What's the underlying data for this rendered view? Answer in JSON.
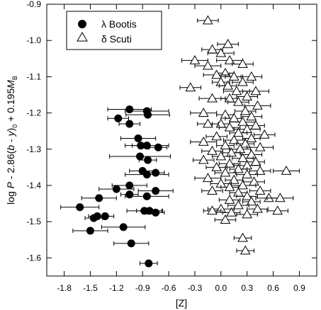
{
  "chart_data": {
    "type": "scatter",
    "title": "",
    "xlabel": "[Z]",
    "ylabel_parts": {
      "pre": "log ",
      "P": "P",
      "mid1": " - 2.86(",
      "b": "b",
      "dash": " - ",
      "y": "y",
      "close": ")",
      "sub0": "0",
      "mid2": " + 0.195",
      "M": "M",
      "subB": "B"
    },
    "xlim": [
      -2.0,
      1.1
    ],
    "ylim": [
      -1.65,
      -0.9
    ],
    "y_inverted": true,
    "x_ticks": [
      -1.8,
      -1.5,
      -1.2,
      -0.9,
      -0.6,
      -0.3,
      0.0,
      0.3,
      0.6,
      0.9
    ],
    "x_tick_labels": [
      "-1.8",
      "-1.5",
      "-1.2",
      "-0.9",
      "-0.6",
      "-0.3",
      "0.0",
      "0.3",
      "0.6",
      "0.9"
    ],
    "y_ticks": [
      -0.9,
      -1.0,
      -1.1,
      -1.2,
      -1.3,
      -1.4,
      -1.5,
      -1.6
    ],
    "y_tick_labels": [
      "-0.9",
      "-1.0",
      "-1.1",
      "-1.2",
      "-1.3",
      "-1.4",
      "-1.5",
      "-1.6"
    ],
    "grid": false,
    "legend_position": "top-left",
    "series": [
      {
        "name": "λ Bootis",
        "marker": "filled-circle",
        "color": "#000000",
        "points": [
          [
            -1.05,
            -1.19,
            0.25
          ],
          [
            -0.85,
            -1.195,
            0.25
          ],
          [
            -1.18,
            -1.215,
            0.12
          ],
          [
            -0.84,
            -1.205,
            0.25
          ],
          [
            -1.05,
            -1.23,
            0.12
          ],
          [
            -0.95,
            -1.27,
            0.2
          ],
          [
            -0.92,
            -1.29,
            0.1
          ],
          [
            -0.85,
            -1.29,
            0.25
          ],
          [
            -0.72,
            -1.295,
            0.1
          ],
          [
            -0.93,
            -1.32,
            0.35
          ],
          [
            -0.84,
            -1.33,
            0.1
          ],
          [
            -0.9,
            -1.36,
            0.15
          ],
          [
            -0.85,
            -1.37,
            0.25
          ],
          [
            -0.75,
            -1.365,
            0.1
          ],
          [
            -1.05,
            -1.4,
            0.2
          ],
          [
            -1.2,
            -1.41,
            0.2
          ],
          [
            -1.05,
            -1.425,
            0.1
          ],
          [
            -0.85,
            -1.43,
            0.25
          ],
          [
            -0.75,
            -1.415,
            0.2
          ],
          [
            -1.4,
            -1.435,
            0.2
          ],
          [
            -1.62,
            -1.46,
            0.22
          ],
          [
            -0.88,
            -1.47,
            0.2
          ],
          [
            -0.82,
            -1.47,
            0.15
          ],
          [
            -0.75,
            -1.475,
            0.1
          ],
          [
            -1.46,
            -1.49,
            0.1
          ],
          [
            -1.42,
            -1.485,
            0.1
          ],
          [
            -1.33,
            -1.485,
            0.1
          ],
          [
            -1.12,
            -1.515,
            0.25
          ],
          [
            -1.5,
            -1.525,
            0.2
          ],
          [
            -1.03,
            -1.56,
            0.2
          ],
          [
            -0.83,
            -1.615,
            0.1
          ]
        ]
      },
      {
        "name": "δ Scuti",
        "marker": "open-triangle",
        "color": "#000000",
        "points": [
          [
            -0.15,
            -0.945,
            0.12
          ],
          [
            0.08,
            -1.01,
            0.12
          ],
          [
            -0.1,
            -1.025,
            0.12
          ],
          [
            0.0,
            -1.035,
            0.15
          ],
          [
            -0.3,
            -1.055,
            0.15
          ],
          [
            0.1,
            -1.055,
            0.15
          ],
          [
            -0.15,
            -1.07,
            0.15
          ],
          [
            0.25,
            -1.065,
            0.12
          ],
          [
            0.05,
            -1.09,
            0.1
          ],
          [
            -0.05,
            -1.095,
            0.15
          ],
          [
            0.15,
            -1.1,
            0.1
          ],
          [
            0.35,
            -1.1,
            0.12
          ],
          [
            0.0,
            -1.115,
            0.1
          ],
          [
            0.25,
            -1.115,
            0.12
          ],
          [
            -0.35,
            -1.13,
            0.12
          ],
          [
            0.08,
            -1.125,
            0.1
          ],
          [
            0.18,
            -1.14,
            0.15
          ],
          [
            0.4,
            -1.14,
            0.15
          ],
          [
            0.3,
            -1.155,
            0.12
          ],
          [
            -0.1,
            -1.16,
            0.15
          ],
          [
            0.1,
            -1.16,
            0.1
          ],
          [
            0.2,
            -1.17,
            0.12
          ],
          [
            0.42,
            -1.18,
            0.15
          ],
          [
            0.28,
            -1.195,
            0.12
          ],
          [
            -0.2,
            -1.2,
            0.15
          ],
          [
            0.05,
            -1.205,
            0.1
          ],
          [
            0.35,
            -1.21,
            0.12
          ],
          [
            0.15,
            -1.215,
            0.1
          ],
          [
            0.25,
            -1.225,
            0.15
          ],
          [
            0.0,
            -1.23,
            0.1
          ],
          [
            -0.15,
            -1.23,
            0.12
          ],
          [
            0.4,
            -1.235,
            0.1
          ],
          [
            0.1,
            -1.24,
            0.12
          ],
          [
            0.3,
            -1.245,
            0.15
          ],
          [
            0.2,
            -1.255,
            0.1
          ],
          [
            0.5,
            -1.26,
            0.12
          ],
          [
            -0.05,
            -1.265,
            0.12
          ],
          [
            0.35,
            -1.27,
            0.1
          ],
          [
            0.15,
            -1.275,
            0.12
          ],
          [
            -0.2,
            -1.28,
            0.15
          ],
          [
            0.28,
            -1.285,
            0.1
          ],
          [
            0.05,
            -1.29,
            0.1
          ],
          [
            0.45,
            -1.295,
            0.15
          ],
          [
            0.22,
            -1.3,
            0.12
          ],
          [
            -0.1,
            -1.305,
            0.12
          ],
          [
            0.12,
            -1.31,
            0.1
          ],
          [
            0.35,
            -1.315,
            0.12
          ],
          [
            0.0,
            -1.32,
            0.1
          ],
          [
            0.25,
            -1.325,
            0.12
          ],
          [
            -0.2,
            -1.33,
            0.12
          ],
          [
            0.4,
            -1.335,
            0.1
          ],
          [
            0.1,
            -1.34,
            0.12
          ],
          [
            0.3,
            -1.345,
            0.15
          ],
          [
            -0.05,
            -1.35,
            0.12
          ],
          [
            0.2,
            -1.355,
            0.1
          ],
          [
            0.75,
            -1.36,
            0.15
          ],
          [
            0.45,
            -1.36,
            0.12
          ],
          [
            0.05,
            -1.365,
            0.12
          ],
          [
            0.3,
            -1.37,
            0.12
          ],
          [
            -0.15,
            -1.38,
            0.15
          ],
          [
            0.15,
            -1.385,
            0.1
          ],
          [
            0.38,
            -1.39,
            0.12
          ],
          [
            0.0,
            -1.395,
            0.12
          ],
          [
            0.25,
            -1.4,
            0.15
          ],
          [
            0.1,
            -1.405,
            0.1
          ],
          [
            -0.1,
            -1.415,
            0.12
          ],
          [
            0.45,
            -1.415,
            0.12
          ],
          [
            0.2,
            -1.42,
            0.1
          ],
          [
            0.3,
            -1.43,
            0.12
          ],
          [
            0.55,
            -1.435,
            0.15
          ],
          [
            0.68,
            -1.435,
            0.15
          ],
          [
            0.1,
            -1.44,
            0.12
          ],
          [
            0.35,
            -1.445,
            0.1
          ],
          [
            0.2,
            -1.455,
            0.12
          ],
          [
            0.0,
            -1.465,
            0.15
          ],
          [
            0.42,
            -1.465,
            0.12
          ],
          [
            -0.1,
            -1.47,
            0.1
          ],
          [
            0.65,
            -1.47,
            0.12
          ],
          [
            0.12,
            -1.475,
            0.1
          ],
          [
            0.3,
            -1.48,
            0.12
          ],
          [
            0.05,
            -1.495,
            0.12
          ],
          [
            0.25,
            -1.545,
            0.1
          ],
          [
            0.28,
            -1.58,
            0.1
          ]
        ]
      }
    ]
  },
  "legend": {
    "items": [
      {
        "label": "λ Bootis",
        "marker": "filled-circle"
      },
      {
        "label": "δ Scuti",
        "marker": "open-triangle"
      }
    ]
  }
}
